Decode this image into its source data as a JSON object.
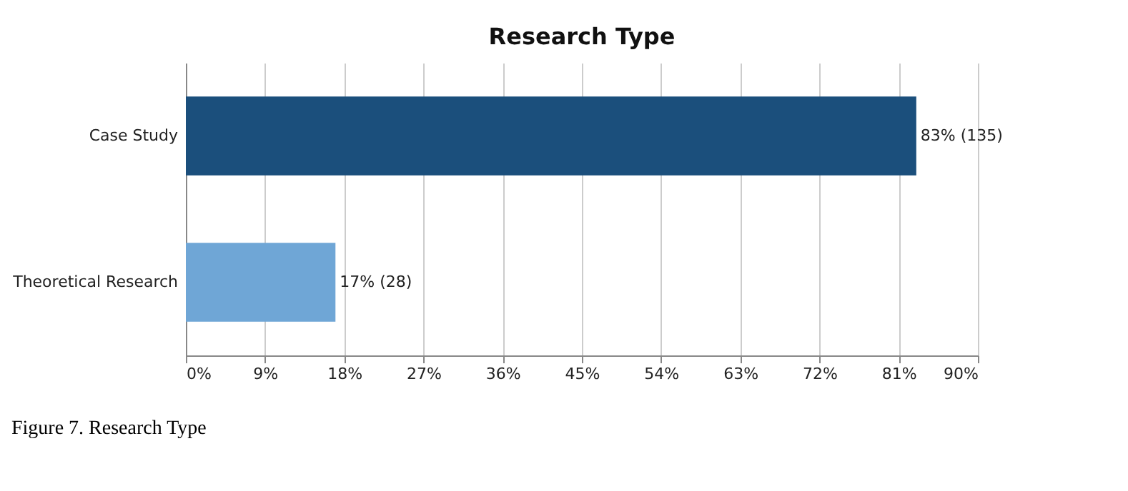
{
  "chart_data": {
    "type": "bar",
    "title": "Research Type",
    "orientation": "horizontal",
    "categories": [
      "Case Study",
      "Theoretical Research"
    ],
    "values": [
      83,
      17
    ],
    "colors": [
      "#1b4f7c",
      "#6fa6d6"
    ],
    "value_labels": [
      "83% (135)",
      "17% (28)"
    ],
    "xlim": [
      0,
      90
    ],
    "xticks": [
      {
        "value": 0,
        "label": "0%"
      },
      {
        "value": 9,
        "label": "9%"
      },
      {
        "value": 18,
        "label": "18%"
      },
      {
        "value": 27,
        "label": "27%"
      },
      {
        "value": 36,
        "label": "36%"
      },
      {
        "value": 45,
        "label": "45%"
      },
      {
        "value": 54,
        "label": "54%"
      },
      {
        "value": 63,
        "label": "63%"
      },
      {
        "value": 72,
        "label": "72%"
      },
      {
        "value": 81,
        "label": "81%"
      },
      {
        "value": 90,
        "label": "90%"
      }
    ],
    "grid": "x",
    "annotations": [
      "Figure 7. Research Type"
    ]
  }
}
